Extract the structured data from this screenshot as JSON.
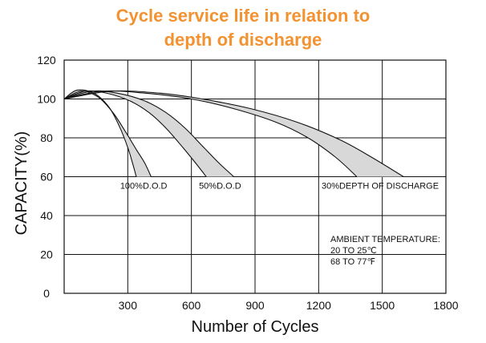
{
  "chart_data": {
    "type": "line",
    "title": "Cycle service life in relation to",
    "title_line2": "depth of discharge",
    "xlabel": "Number of Cycles",
    "ylabel": "CAPACITY(%)",
    "xlim": [
      0,
      1800
    ],
    "ylim": [
      0,
      120
    ],
    "x_ticks": [
      "300",
      "600",
      "900",
      "1200",
      "1500",
      "1800"
    ],
    "y_ticks": [
      "0",
      "20",
      "40",
      "60",
      "80",
      "100",
      "120"
    ],
    "grid": true,
    "fill_color": "#d8d8d8",
    "line_color": "#111111",
    "series": [
      {
        "name": "100%D.O.D",
        "upper": [
          [
            0,
            100
          ],
          [
            60,
            104.5
          ],
          [
            140,
            103
          ],
          [
            210,
            96
          ],
          [
            260,
            86
          ],
          [
            300,
            75
          ],
          [
            325,
            66
          ],
          [
            340,
            60
          ]
        ],
        "lower": [
          [
            0,
            100
          ],
          [
            80,
            104
          ],
          [
            160,
            101
          ],
          [
            230,
            93
          ],
          [
            290,
            83
          ],
          [
            340,
            74
          ],
          [
            380,
            67
          ],
          [
            410,
            60
          ]
        ]
      },
      {
        "name": "50%D.O.D",
        "upper": [
          [
            0,
            100
          ],
          [
            100,
            104
          ],
          [
            200,
            103
          ],
          [
            310,
            99
          ],
          [
            400,
            93
          ],
          [
            480,
            85
          ],
          [
            560,
            75
          ],
          [
            620,
            67
          ],
          [
            670,
            60
          ]
        ],
        "lower": [
          [
            0,
            100
          ],
          [
            130,
            104
          ],
          [
            250,
            103
          ],
          [
            380,
            99
          ],
          [
            480,
            93
          ],
          [
            570,
            85
          ],
          [
            650,
            76
          ],
          [
            730,
            67
          ],
          [
            800,
            60
          ]
        ]
      },
      {
        "name": "30%DEPTH OF DISCHARGE",
        "upper": [
          [
            0,
            100
          ],
          [
            180,
            104
          ],
          [
            380,
            103
          ],
          [
            600,
            100
          ],
          [
            800,
            95
          ],
          [
            1000,
            88
          ],
          [
            1150,
            80
          ],
          [
            1280,
            70
          ],
          [
            1380,
            60
          ]
        ],
        "lower": [
          [
            0,
            100
          ],
          [
            220,
            104
          ],
          [
            450,
            103
          ],
          [
            650,
            100
          ],
          [
            880,
            95
          ],
          [
            1100,
            88
          ],
          [
            1300,
            79
          ],
          [
            1450,
            70
          ],
          [
            1600,
            60
          ]
        ]
      }
    ],
    "annotation": {
      "line1": "AMBIENT TEMPERATURE:",
      "line2": "20 TO 25℃",
      "line3": "68 TO 77℉"
    }
  }
}
